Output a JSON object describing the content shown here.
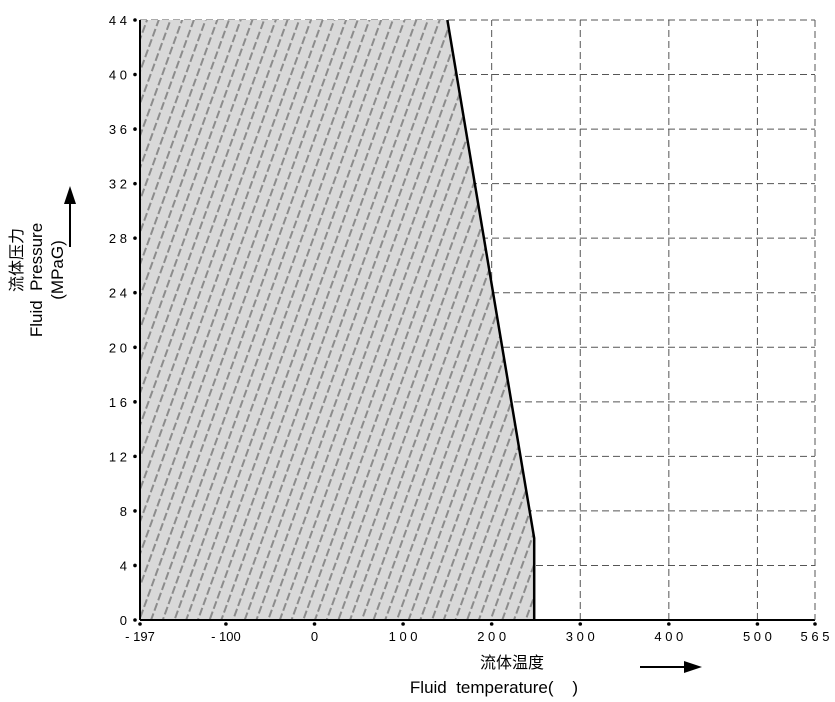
{
  "chart_data": {
    "type": "area",
    "xlabel_cn": "流体温度",
    "xlabel_en": "Fluid  temperature(    )",
    "ylabel_cn": "流体压力",
    "ylabel_en_1": "Fluid  Pressure",
    "ylabel_en_2": "(MPaG)",
    "xlim": [
      -197,
      565
    ],
    "ylim": [
      0,
      44
    ],
    "x_ticks": [
      -197,
      -100,
      0,
      100,
      200,
      300,
      400,
      500,
      565
    ],
    "x_tick_labels": [
      "- 197",
      "- 100",
      "0",
      "1 0 0",
      "2 0 0",
      "3 0 0",
      "4 0 0",
      "5 0 0",
      "5 6 5"
    ],
    "y_ticks": [
      0,
      4,
      8,
      12,
      16,
      20,
      24,
      28,
      32,
      36,
      40,
      44
    ],
    "y_tick_labels": [
      "0",
      "4",
      "8",
      "1 2",
      "1 6",
      "2 0",
      "2 4",
      "2 8",
      "3 2",
      "3 6",
      "4 0",
      "4 4"
    ],
    "grid": true,
    "series": [
      {
        "x": [
          -197,
          150,
          248,
          248,
          -197
        ],
        "y": [
          44,
          44,
          6,
          0,
          0
        ]
      }
    ],
    "colors": {
      "fill": "#d9d9d9",
      "hatch": "#8c8c8c",
      "boundary": "#000000",
      "grid": "#555555"
    }
  }
}
